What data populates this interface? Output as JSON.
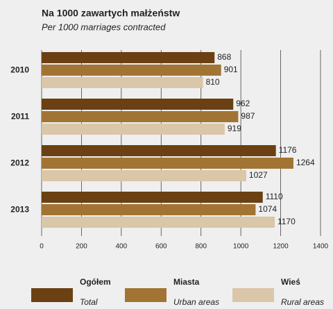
{
  "chart_data": {
    "type": "bar",
    "orientation": "horizontal",
    "title": "Na 1000 zawartych małżeństw",
    "subtitle": "Per 1000 marriages contracted",
    "categories": [
      "2010",
      "2011",
      "2012",
      "2013"
    ],
    "series": [
      {
        "name": "Ogółem",
        "name_en": "Total",
        "color": "#6b4012",
        "values": [
          868,
          962,
          1176,
          1110
        ]
      },
      {
        "name": "Miasta",
        "name_en": "Urban areas",
        "color": "#a27434",
        "values": [
          901,
          987,
          1264,
          1074
        ]
      },
      {
        "name": "Wieś",
        "name_en": "Rural areas",
        "color": "#dac6a8",
        "values": [
          810,
          919,
          1027,
          1170
        ]
      }
    ],
    "xlim": [
      0,
      1400
    ],
    "xticks": [
      0,
      200,
      400,
      600,
      800,
      1000,
      1200,
      1400
    ],
    "grid": true,
    "legend": "bottom"
  }
}
